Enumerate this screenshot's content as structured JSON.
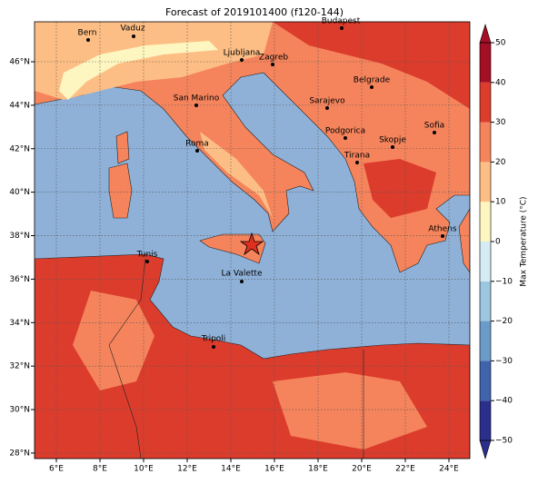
{
  "title": "Forecast of 2019101400 (f120-144)",
  "map": {
    "lon_ticks": [
      {
        "value": 6,
        "label": "6°E"
      },
      {
        "value": 8,
        "label": "8°E"
      },
      {
        "value": 10,
        "label": "10°E"
      },
      {
        "value": 12,
        "label": "12°E"
      },
      {
        "value": 14,
        "label": "14°E"
      },
      {
        "value": 16,
        "label": "16°E"
      },
      {
        "value": 18,
        "label": "18°E"
      },
      {
        "value": 20,
        "label": "20°E"
      },
      {
        "value": 22,
        "label": "22°E"
      },
      {
        "value": 24,
        "label": "24°E"
      }
    ],
    "lat_ticks": [
      {
        "value": 28,
        "label": "28°N"
      },
      {
        "value": 30,
        "label": "30°N"
      },
      {
        "value": 32,
        "label": "32°N"
      },
      {
        "value": 34,
        "label": "34°N"
      },
      {
        "value": 36,
        "label": "36°N"
      },
      {
        "value": 38,
        "label": "38°N"
      },
      {
        "value": 40,
        "label": "40°N"
      },
      {
        "value": 42,
        "label": "42°N"
      },
      {
        "value": 44,
        "label": "44°N"
      },
      {
        "value": 46,
        "label": "46°N"
      }
    ],
    "cities": [
      "Bern",
      "Vaduz",
      "Budapest",
      "Ljubljana",
      "Zagreb",
      "Belgrade",
      "Sarajevo",
      "San Marino",
      "Sofia",
      "Podgorica",
      "Skopje",
      "Roma",
      "Tirana",
      "Athens",
      "Tunis",
      "La Valette",
      "Tripoli"
    ]
  },
  "colorbar": {
    "label": "Max Temperature (°C)",
    "ticks": [
      {
        "value": -50,
        "label": "−50"
      },
      {
        "value": -40,
        "label": "−40"
      },
      {
        "value": -30,
        "label": "−30"
      },
      {
        "value": -20,
        "label": "−20"
      },
      {
        "value": -10,
        "label": "−10"
      },
      0,
      10,
      20,
      30,
      40,
      50
    ],
    "colors": [
      "#2b2f8c",
      "#3f64ac",
      "#6a9bc9",
      "#9dc6e0",
      "#d6ecf4",
      "#fdf6c0",
      "#fdbe85",
      "#f5845c",
      "#dc3c2c",
      "#a50f26"
    ]
  }
}
